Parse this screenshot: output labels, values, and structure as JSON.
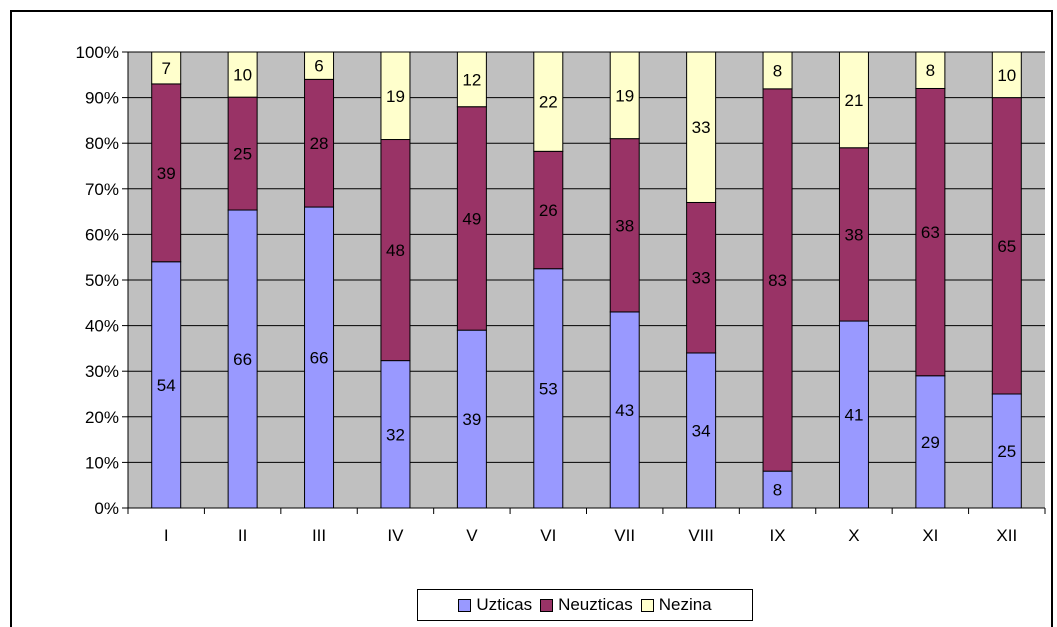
{
  "chart_data": {
    "type": "bar",
    "stacked": true,
    "percent_stacked": true,
    "categories": [
      "I",
      "II",
      "III",
      "IV",
      "V",
      "VI",
      "VII",
      "VIII",
      "IX",
      "X",
      "XI",
      "XII"
    ],
    "series": [
      {
        "name": "Uzticas",
        "color": "#9999ff",
        "values": [
          54,
          66,
          66,
          32,
          39,
          53,
          43,
          34,
          8,
          41,
          29,
          25
        ]
      },
      {
        "name": "Neuzticas",
        "color": "#993366",
        "values": [
          39,
          25,
          28,
          48,
          49,
          26,
          38,
          33,
          83,
          38,
          63,
          65
        ]
      },
      {
        "name": "Nezina",
        "color": "#ffffcc",
        "values": [
          7,
          10,
          6,
          19,
          12,
          22,
          19,
          33,
          8,
          21,
          8,
          10
        ]
      }
    ],
    "y_ticks": [
      "0%",
      "10%",
      "20%",
      "30%",
      "40%",
      "50%",
      "60%",
      "70%",
      "80%",
      "90%",
      "100%"
    ],
    "ylim": [
      0,
      100
    ],
    "plot_background": "#c0c0c0",
    "grid": true,
    "legend_position": "bottom",
    "title": "",
    "xlabel": "",
    "ylabel": ""
  }
}
